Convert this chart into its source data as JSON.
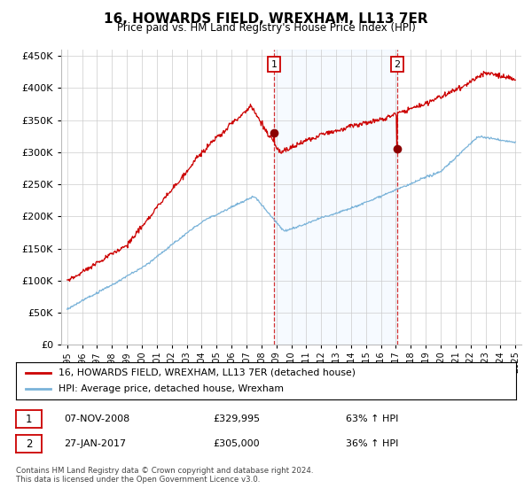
{
  "title": "16, HOWARDS FIELD, WREXHAM, LL13 7ER",
  "subtitle": "Price paid vs. HM Land Registry's House Price Index (HPI)",
  "ylim": [
    0,
    460000
  ],
  "yticks": [
    0,
    50000,
    100000,
    150000,
    200000,
    250000,
    300000,
    350000,
    400000,
    450000
  ],
  "ytick_labels": [
    "£0",
    "£50K",
    "£100K",
    "£150K",
    "£200K",
    "£250K",
    "£300K",
    "£350K",
    "£400K",
    "£450K"
  ],
  "transaction1_price": 329995,
  "transaction1_x": 2008.85,
  "transaction2_price": 305000,
  "transaction2_x": 2017.07,
  "hpi_line_color": "#7ab3d9",
  "price_line_color": "#cc0000",
  "marker_color": "#8b0000",
  "shade_color": "#ddeeff",
  "grid_color": "#cccccc",
  "background_color": "#ffffff",
  "legend_label1": "16, HOWARDS FIELD, WREXHAM, LL13 7ER (detached house)",
  "legend_label2": "HPI: Average price, detached house, Wrexham",
  "footnote": "Contains HM Land Registry data © Crown copyright and database right 2024.\nThis data is licensed under the Open Government Licence v3.0.",
  "transaction1_date": "07-NOV-2008",
  "transaction1_hpi_pct": "63% ↑ HPI",
  "transaction2_date": "27-JAN-2017",
  "transaction2_hpi_pct": "36% ↑ HPI",
  "transaction1_price_str": "£329,995",
  "transaction2_price_str": "£305,000"
}
